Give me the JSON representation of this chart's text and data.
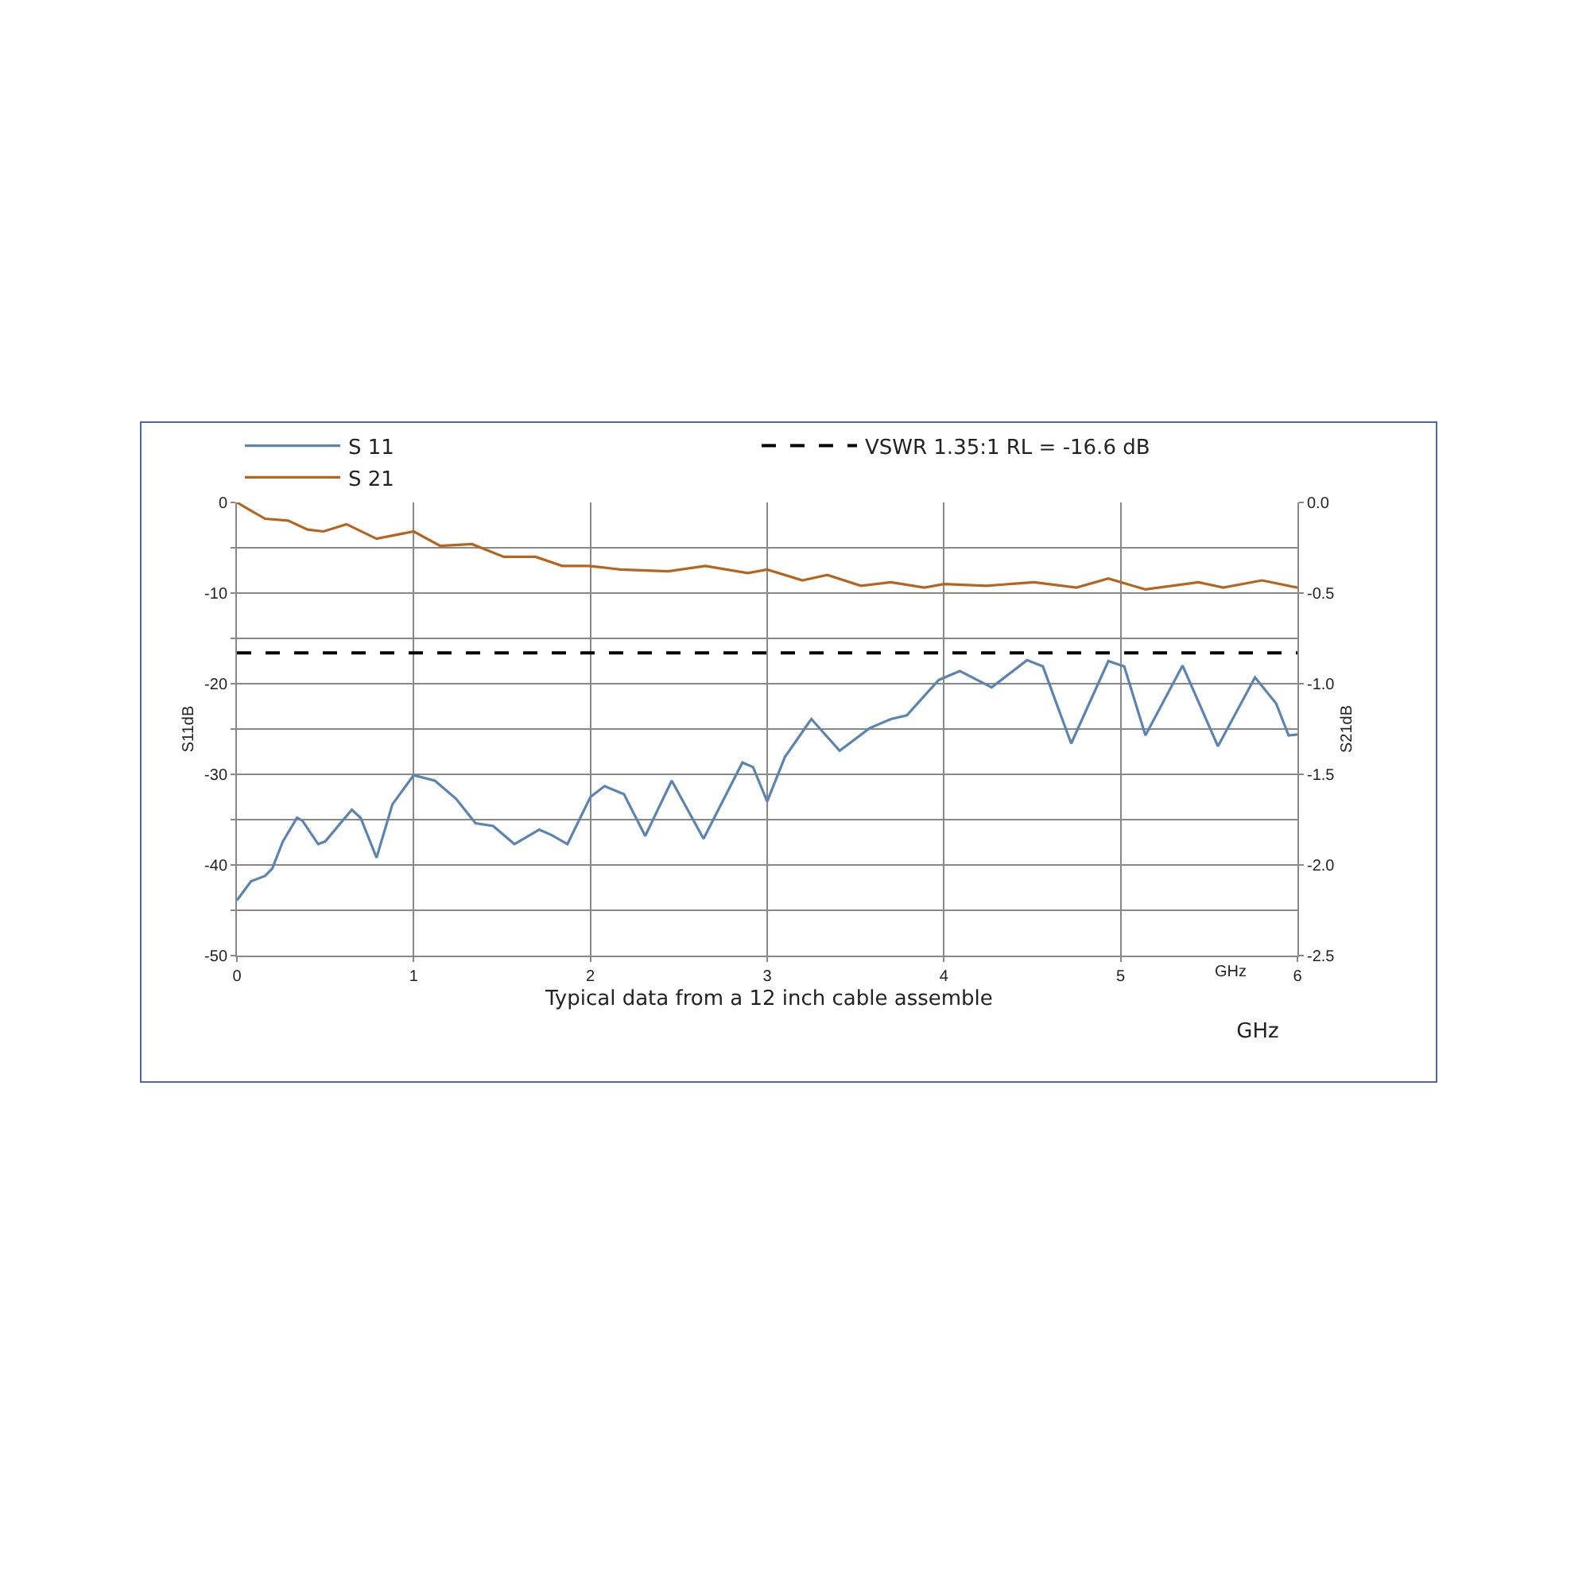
{
  "chart_data": {
    "type": "line",
    "xlabel": "GHz",
    "ylabel": "S11dB",
    "y2label": "S21dB",
    "annotations": [
      "Typical data from a 12 inch cable assemble",
      "GHz"
    ],
    "xlim": [
      0,
      6
    ],
    "xticks": [
      0,
      1,
      2,
      3,
      4,
      5,
      6
    ],
    "ylim": [
      -50,
      0
    ],
    "yticks": [
      0,
      {
        "value": -5,
        "label": null
      },
      -10,
      {
        "value": -15,
        "label": null
      },
      -20,
      {
        "value": -25,
        "label": null
      },
      -30,
      {
        "value": -35,
        "label": null
      },
      -40,
      {
        "value": -45,
        "label": null
      },
      -50
    ],
    "y2lim": [
      -2.5,
      0
    ],
    "y2ticks": [
      {
        "value": 0,
        "label": "0.0"
      },
      -0.5,
      {
        "value": -1,
        "label": "-1.0"
      },
      -1.5,
      {
        "value": -2,
        "label": "-2.0"
      },
      -2.5
    ],
    "grid": true,
    "legend": "top",
    "marker": "none",
    "line_style": "solid",
    "ref_lines": [
      {
        "axis": "y",
        "value": -16.6,
        "label": "VSWR 1.35:1 RL = -16.6 dB",
        "color": "#000000",
        "line_style": "dashed"
      }
    ],
    "series": [
      {
        "name": "S 11",
        "color": "#5b84b0",
        "x": [
          0,
          0.08,
          0.16,
          0.2,
          0.26,
          0.34,
          0.37,
          0.46,
          0.5,
          0.65,
          0.7,
          0.79,
          0.88,
          1.0,
          1.12,
          1.24,
          1.35,
          1.45,
          1.57,
          1.71,
          1.78,
          1.87,
          2.0,
          2.08,
          2.19,
          2.31,
          2.46,
          2.64,
          2.86,
          2.92,
          3.0,
          3.1,
          3.25,
          3.41,
          3.58,
          3.7,
          3.79,
          3.97,
          4.09,
          4.27,
          4.47,
          4.56,
          4.72,
          4.93,
          5.02,
          5.14,
          5.35,
          5.55,
          5.76,
          5.88,
          5.95,
          6.0
        ],
        "values": [
          -43.9,
          -41.8,
          -41.2,
          -40.4,
          -37.4,
          -34.8,
          -35.1,
          -37.7,
          -37.4,
          -33.9,
          -34.8,
          -39.2,
          -33.3,
          -30.1,
          -30.7,
          -32.7,
          -35.4,
          -35.7,
          -37.7,
          -36.1,
          -36.7,
          -37.7,
          -32.5,
          -31.3,
          -32.2,
          -36.8,
          -30.7,
          -37.1,
          -28.7,
          -29.2,
          -33.0,
          -28.1,
          -23.9,
          -27.4,
          -24.9,
          -23.9,
          -23.5,
          -19.6,
          -18.6,
          -20.4,
          -17.4,
          -18.1,
          -26.6,
          -17.5,
          -18.1,
          -25.7,
          -18.0,
          -26.9,
          -19.3,
          -22.2,
          -25.7,
          -25.6
        ]
      },
      {
        "name": "S 21",
        "color": "#b5651d",
        "axis": "y2",
        "x": [
          0,
          0.07,
          0.16,
          0.29,
          0.4,
          0.49,
          0.62,
          0.79,
          1.0,
          1.15,
          1.33,
          1.51,
          1.69,
          1.84,
          1.99,
          2.17,
          2.44,
          2.65,
          2.89,
          3.0,
          3.2,
          3.34,
          3.53,
          3.7,
          3.89,
          4.0,
          4.24,
          4.51,
          4.75,
          4.93,
          5.14,
          5.44,
          5.58,
          5.8,
          6.0
        ],
        "values": [
          0,
          -0.04,
          -0.09,
          -0.1,
          -0.15,
          -0.16,
          -0.12,
          -0.2,
          -0.16,
          -0.24,
          -0.23,
          -0.3,
          -0.3,
          -0.35,
          -0.35,
          -0.37,
          -0.38,
          -0.35,
          -0.39,
          -0.37,
          -0.43,
          -0.4,
          -0.46,
          -0.44,
          -0.47,
          -0.45,
          -0.46,
          -0.44,
          -0.47,
          -0.42,
          -0.48,
          -0.44,
          -0.47,
          -0.43,
          -0.47
        ]
      }
    ]
  }
}
